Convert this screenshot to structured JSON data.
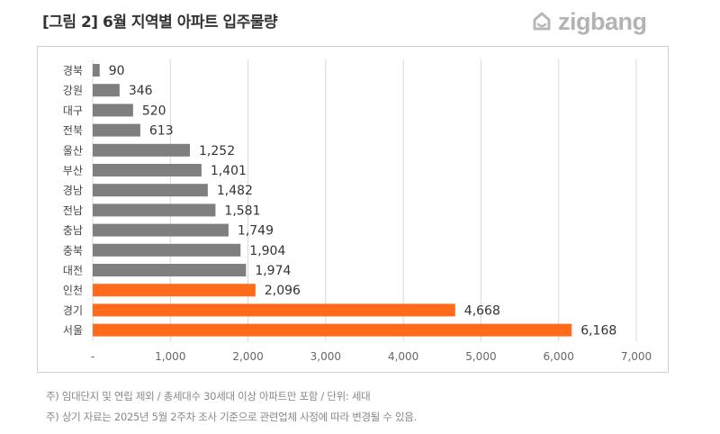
{
  "title": "[그림 2] 6월 지역별 아파트 입주물량",
  "logo": {
    "text": "zigbang",
    "icon": "zigbang-house-icon"
  },
  "notes": [
    "주) 임대단지 및 연립 제외 / 총세대수 30세대 이상 아파트만 포함 / 단위: 세대",
    "주) 상기 자료는 2025년 5월 2주차 조사 기준으로 관련업체 사정에 따라 변경될 수 있음."
  ],
  "colors": {
    "gray_bar": "#7f7f7f",
    "orange_bar": "#ff6b1a",
    "grid": "#d9d9d9"
  },
  "chart_data": {
    "type": "bar",
    "orientation": "horizontal",
    "categories": [
      "경북",
      "강원",
      "대구",
      "전북",
      "울산",
      "부산",
      "경남",
      "전남",
      "충남",
      "충북",
      "대전",
      "인천",
      "경기",
      "서울"
    ],
    "values": [
      90,
      346,
      520,
      613,
      1252,
      1401,
      1482,
      1581,
      1749,
      1904,
      1974,
      2096,
      4668,
      6168
    ],
    "value_labels": [
      "90",
      "346",
      "520",
      "613",
      "1,252",
      "1,401",
      "1,482",
      "1,581",
      "1,749",
      "1,904",
      "1,974",
      "2,096",
      "4,668",
      "6,168"
    ],
    "highlighted": [
      "인천",
      "경기",
      "서울"
    ],
    "xlim": [
      0,
      7000
    ],
    "x_ticks": [
      0,
      1000,
      2000,
      3000,
      4000,
      5000,
      6000,
      7000
    ],
    "x_tick_labels": [
      "-",
      "1,000",
      "2,000",
      "3,000",
      "4,000",
      "5,000",
      "6,000",
      "7,000"
    ],
    "grid": "vertical",
    "title": "",
    "xlabel": "",
    "ylabel": ""
  }
}
